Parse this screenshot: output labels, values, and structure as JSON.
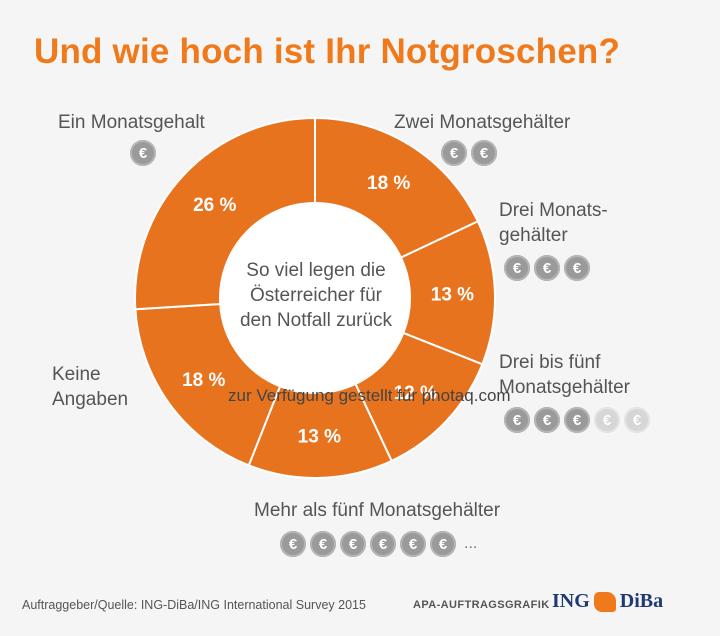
{
  "chart_data": {
    "type": "pie",
    "title": "Und wie hoch ist Ihr Notgroschen?",
    "center_label": "So viel legen die Österreicher für den Notfall zurück",
    "slices": [
      {
        "label": "Ein Monatsgehalt",
        "value": 18,
        "value_label": "18 %",
        "coins": 1,
        "coins_light": 0,
        "ellipsis": ""
      },
      {
        "label": "Zwei Monatsgehälter",
        "value": 13,
        "value_label": "13 %",
        "coins": 2,
        "coins_light": 0,
        "ellipsis": ""
      },
      {
        "label": "Drei Monats- gehälter",
        "value": 12,
        "value_label": "12 %",
        "coins": 3,
        "coins_light": 0,
        "ellipsis": ""
      },
      {
        "label": "Drei bis fünf Monatsgehälter",
        "value": 13,
        "value_label": "13 %",
        "coins": 3,
        "coins_light": 2,
        "ellipsis": ""
      },
      {
        "label": "Mehr als fünf Monatsgehälter",
        "value": 18,
        "value_label": "18 %",
        "coins": 6,
        "coins_light": 0,
        "ellipsis": "..."
      },
      {
        "label": "Keine Angaben",
        "value": 26,
        "value_label": "26 %",
        "coins": 0,
        "coins_light": 0,
        "ellipsis": ""
      }
    ],
    "colors": {
      "slice": "#e8731f",
      "separator": "#ffffff",
      "title": "#f07a1b"
    }
  },
  "coin_symbol": "€",
  "watermark": "zur Verfügung gestellt für photaq.com",
  "footer": {
    "source": "Auftraggeber/Quelle: ING-DiBa/ING International Survey 2015",
    "agency": "APA-AUFTRAGSGRAFIK",
    "logo_left": "ING",
    "logo_right": "DiBa"
  }
}
